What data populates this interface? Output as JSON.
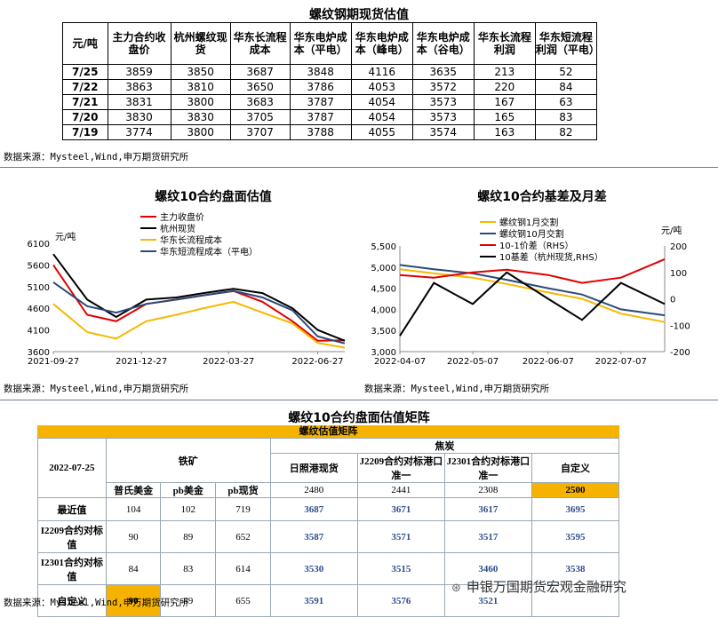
{
  "table1": {
    "title": "螺纹钢期现货估值",
    "headers": [
      "元/吨",
      "主力合约收盘价",
      "杭州螺纹现货",
      "华东长流程成本",
      "华东电炉成本（平电）",
      "华东电炉成本（峰电）",
      "华东电炉成本（谷电）",
      "华东长流程利润",
      "华东短流程利润（平电）"
    ],
    "rows": [
      [
        "7/25",
        "3859",
        "3850",
        "3687",
        "3848",
        "4116",
        "3635",
        "213",
        "52"
      ],
      [
        "7/22",
        "3863",
        "3810",
        "3650",
        "3786",
        "4053",
        "3572",
        "220",
        "84"
      ],
      [
        "7/21",
        "3831",
        "3800",
        "3683",
        "3787",
        "4054",
        "3573",
        "167",
        "63"
      ],
      [
        "7/20",
        "3830",
        "3830",
        "3705",
        "3787",
        "4054",
        "3573",
        "165",
        "83"
      ],
      [
        "7/19",
        "3774",
        "3800",
        "3707",
        "3788",
        "4055",
        "3574",
        "163",
        "82"
      ]
    ],
    "source": "数据来源：Mysteel,Wind,申万期货研究所"
  },
  "chart_data": [
    {
      "type": "line",
      "title": "螺纹10合约盘面估值",
      "ylabel": "元/吨",
      "ylim": [
        3600,
        6100
      ],
      "yticks": [
        "6100",
        "5600",
        "5100",
        "4600",
        "4100",
        "3600"
      ],
      "xticks": [
        "2021-09-27",
        "2021-12-27",
        "2022-03-27",
        "2022-06-27"
      ],
      "x": [
        "2021-09-27",
        "2021-11-01",
        "2021-12-01",
        "2022-01-01",
        "2022-02-01",
        "2022-03-01",
        "2022-04-01",
        "2022-05-01",
        "2022-06-01",
        "2022-06-27",
        "2022-07-25"
      ],
      "series": [
        {
          "name": "主力收盘价",
          "color": "#e00000",
          "values": [
            5600,
            4450,
            4300,
            4700,
            4800,
            4900,
            5000,
            4750,
            4300,
            3850,
            3860
          ]
        },
        {
          "name": "杭州现货",
          "color": "#000000",
          "values": [
            5850,
            4800,
            4400,
            4800,
            4850,
            4950,
            5050,
            4950,
            4600,
            4100,
            3850
          ]
        },
        {
          "name": "华东长流程成本",
          "color": "#f5b800",
          "values": [
            4700,
            4050,
            3900,
            4300,
            4450,
            4600,
            4750,
            4500,
            4250,
            3800,
            3690
          ]
        },
        {
          "name": "华东短流程成本（平电）",
          "color": "#2a4a7a",
          "values": [
            5200,
            4650,
            4500,
            4700,
            4800,
            4900,
            5000,
            4850,
            4550,
            3950,
            3790
          ]
        }
      ],
      "legend_position": "top-right"
    },
    {
      "type": "line",
      "title": "螺纹10合约基差及月差",
      "ylabel_right": "元/吨",
      "ylim": [
        3000,
        5500
      ],
      "ylim_right": [
        -200,
        200
      ],
      "yticks": [
        "5,500",
        "5,000",
        "4,500",
        "4,000",
        "3,500",
        "3,000"
      ],
      "yticks_right": [
        "200",
        "100",
        "0",
        "-100",
        "-200"
      ],
      "xticks": [
        "2022-04-07",
        "2022-05-07",
        "2022-06-07",
        "2022-07-07"
      ],
      "x": [
        "2022-04-07",
        "2022-04-21",
        "2022-05-07",
        "2022-05-21",
        "2022-06-07",
        "2022-06-21",
        "2022-07-07",
        "2022-07-25"
      ],
      "series": [
        {
          "name": "螺纹钢1月交割",
          "color": "#f5b800",
          "axis": "left",
          "values": [
            4950,
            4850,
            4750,
            4600,
            4400,
            4250,
            3900,
            3700
          ]
        },
        {
          "name": "螺纹钢10月交割",
          "color": "#2a4a7a",
          "axis": "left",
          "values": [
            5050,
            4950,
            4850,
            4700,
            4500,
            4350,
            4000,
            3860
          ]
        },
        {
          "name": "10-1价差（RHS）",
          "color": "#e00000",
          "axis": "right",
          "values": [
            90,
            80,
            100,
            110,
            90,
            60,
            80,
            150
          ]
        },
        {
          "name": "10基差（杭州现货,RHS）",
          "color": "#000000",
          "axis": "right",
          "values": [
            -140,
            60,
            -20,
            100,
            0,
            -80,
            60,
            -20
          ]
        }
      ],
      "legend_position": "top-left"
    }
  ],
  "source2": "数据来源：Mysteel,Wind,申万期货研究所",
  "source3": "数据来源：Mysteel,Wind,申万期货研究所",
  "matrix": {
    "title": "螺纹10合约盘面估值矩阵",
    "band": "螺纹估值矩阵",
    "date": "2022-07-25",
    "iron_ore": "铁矿",
    "coke": "焦炭",
    "ore_cols": [
      "普氏美金",
      "pb美金",
      "pb现货"
    ],
    "coke_cols": [
      "日照港现货",
      "J2209合约对标港口准一",
      "J2301合约对标港口准一",
      "自定义"
    ],
    "coke_values": [
      "2480",
      "2441",
      "2308",
      "2500"
    ],
    "rows": [
      {
        "label": "最近值",
        "ore": [
          "104",
          "102",
          "719"
        ],
        "vals": [
          "3687",
          "3671",
          "3617",
          "3695"
        ]
      },
      {
        "label": "I2209合约对标值",
        "ore": [
          "90",
          "89",
          "652"
        ],
        "vals": [
          "3587",
          "3571",
          "3517",
          "3595"
        ]
      },
      {
        "label": "I2301合约对标值",
        "ore": [
          "84",
          "83",
          "614"
        ],
        "vals": [
          "3530",
          "3515",
          "3460",
          "3538"
        ]
      },
      {
        "label": "自定义",
        "ore": [
          "90",
          "89",
          "655"
        ],
        "vals": [
          "3591",
          "3576",
          "3521",
          ""
        ]
      }
    ]
  },
  "watermark": "申银万国期货宏观金融研究",
  "colors": {
    "highlight": "#f5b300",
    "value_blue": "#2f4e8c"
  }
}
